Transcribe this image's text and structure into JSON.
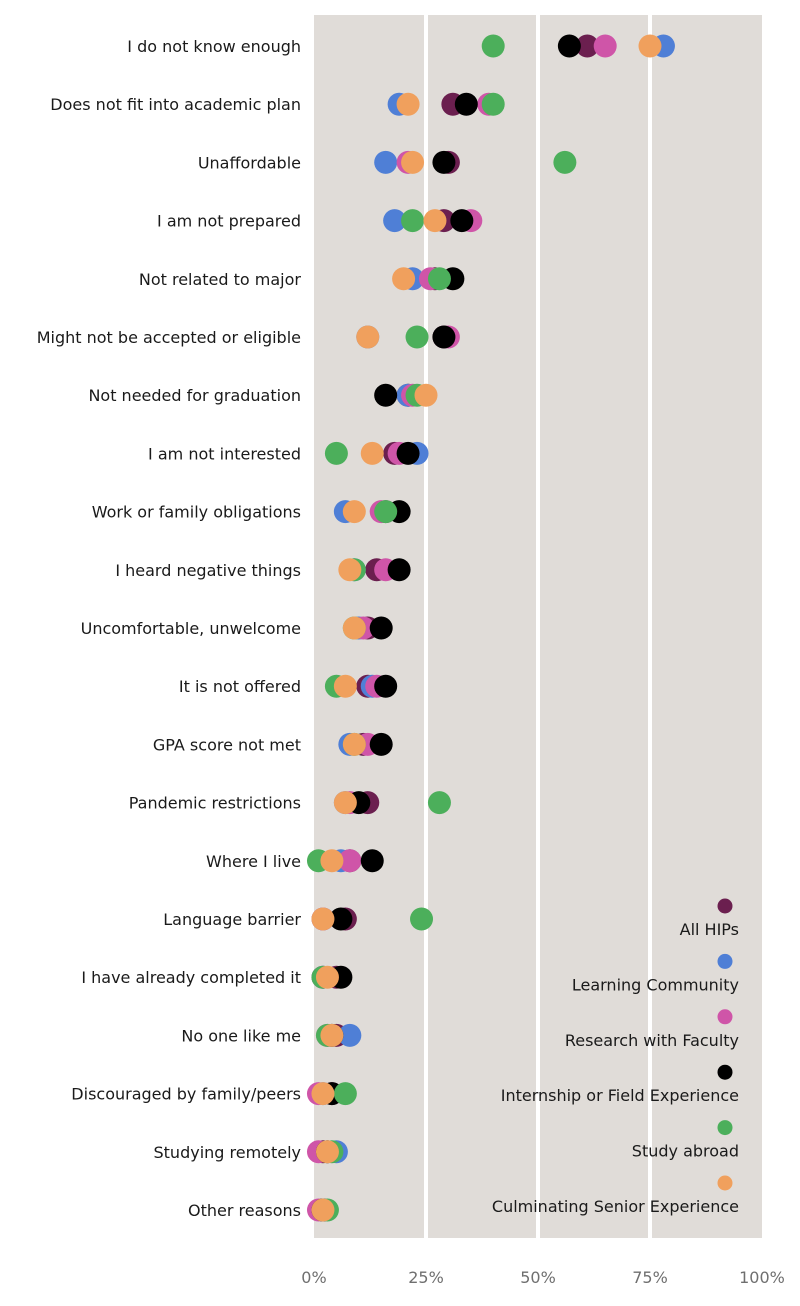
{
  "chart_data": {
    "type": "scatter",
    "title": "",
    "xlabel": "",
    "ylabel": "",
    "xlim": [
      0,
      100
    ],
    "x_ticks": [
      "0%",
      "25%",
      "50%",
      "75%",
      "100%"
    ],
    "grid": true,
    "legend_position": "bottom-right",
    "categories": [
      "I do not know enough",
      "Does not fit into academic plan",
      "Unaffordable",
      "I am not prepared",
      "Not related to major",
      "Might not be accepted or eligible",
      "Not needed for graduation",
      "I am not interested",
      "Work or family obligations",
      "I heard negative things",
      "Uncomfortable, unwelcome",
      "It is not offered",
      "GPA score not met",
      "Pandemic restrictions",
      "Where I live",
      "Language barrier",
      "I have already completed it",
      "No one like me",
      "Discouraged by family/peers",
      "Studying remotely",
      "Other reasons"
    ],
    "series": [
      {
        "name": "All HIPs",
        "color": "#6b1f4f",
        "values": [
          61,
          31,
          30,
          29,
          27,
          29,
          21,
          18,
          16,
          14,
          12,
          12,
          11,
          12,
          8,
          7,
          5,
          5,
          4,
          2,
          2
        ]
      },
      {
        "name": "Learning Community",
        "color": "#4f7fd6",
        "values": [
          78,
          19,
          16,
          18,
          22,
          12,
          21,
          23,
          7,
          9,
          10,
          13,
          8,
          7,
          6,
          2,
          2,
          8,
          2,
          5,
          2
        ]
      },
      {
        "name": "Research with Faculty",
        "color": "#cf55a8",
        "values": [
          65,
          39,
          21,
          35,
          26,
          30,
          22,
          19,
          15,
          16,
          11,
          14,
          12,
          8,
          8,
          2,
          2,
          3,
          1,
          1,
          1
        ]
      },
      {
        "name": "Internship or Field Experience",
        "color": "#000000",
        "values": [
          57,
          34,
          29,
          33,
          31,
          29,
          16,
          21,
          19,
          19,
          15,
          16,
          15,
          10,
          13,
          6,
          6,
          4,
          4,
          3,
          2
        ]
      },
      {
        "name": "Study abroad",
        "color": "#4caf5b",
        "values": [
          40,
          40,
          56,
          22,
          28,
          23,
          23,
          5,
          16,
          9,
          9,
          5,
          9,
          28,
          1,
          24,
          2,
          3,
          7,
          4,
          3
        ]
      },
      {
        "name": "Culminating Senior Experience",
        "color": "#f0a05d",
        "values": [
          75,
          21,
          22,
          27,
          20,
          12,
          25,
          13,
          9,
          8,
          9,
          7,
          9,
          7,
          4,
          2,
          3,
          4,
          2,
          3,
          2
        ]
      }
    ]
  }
}
